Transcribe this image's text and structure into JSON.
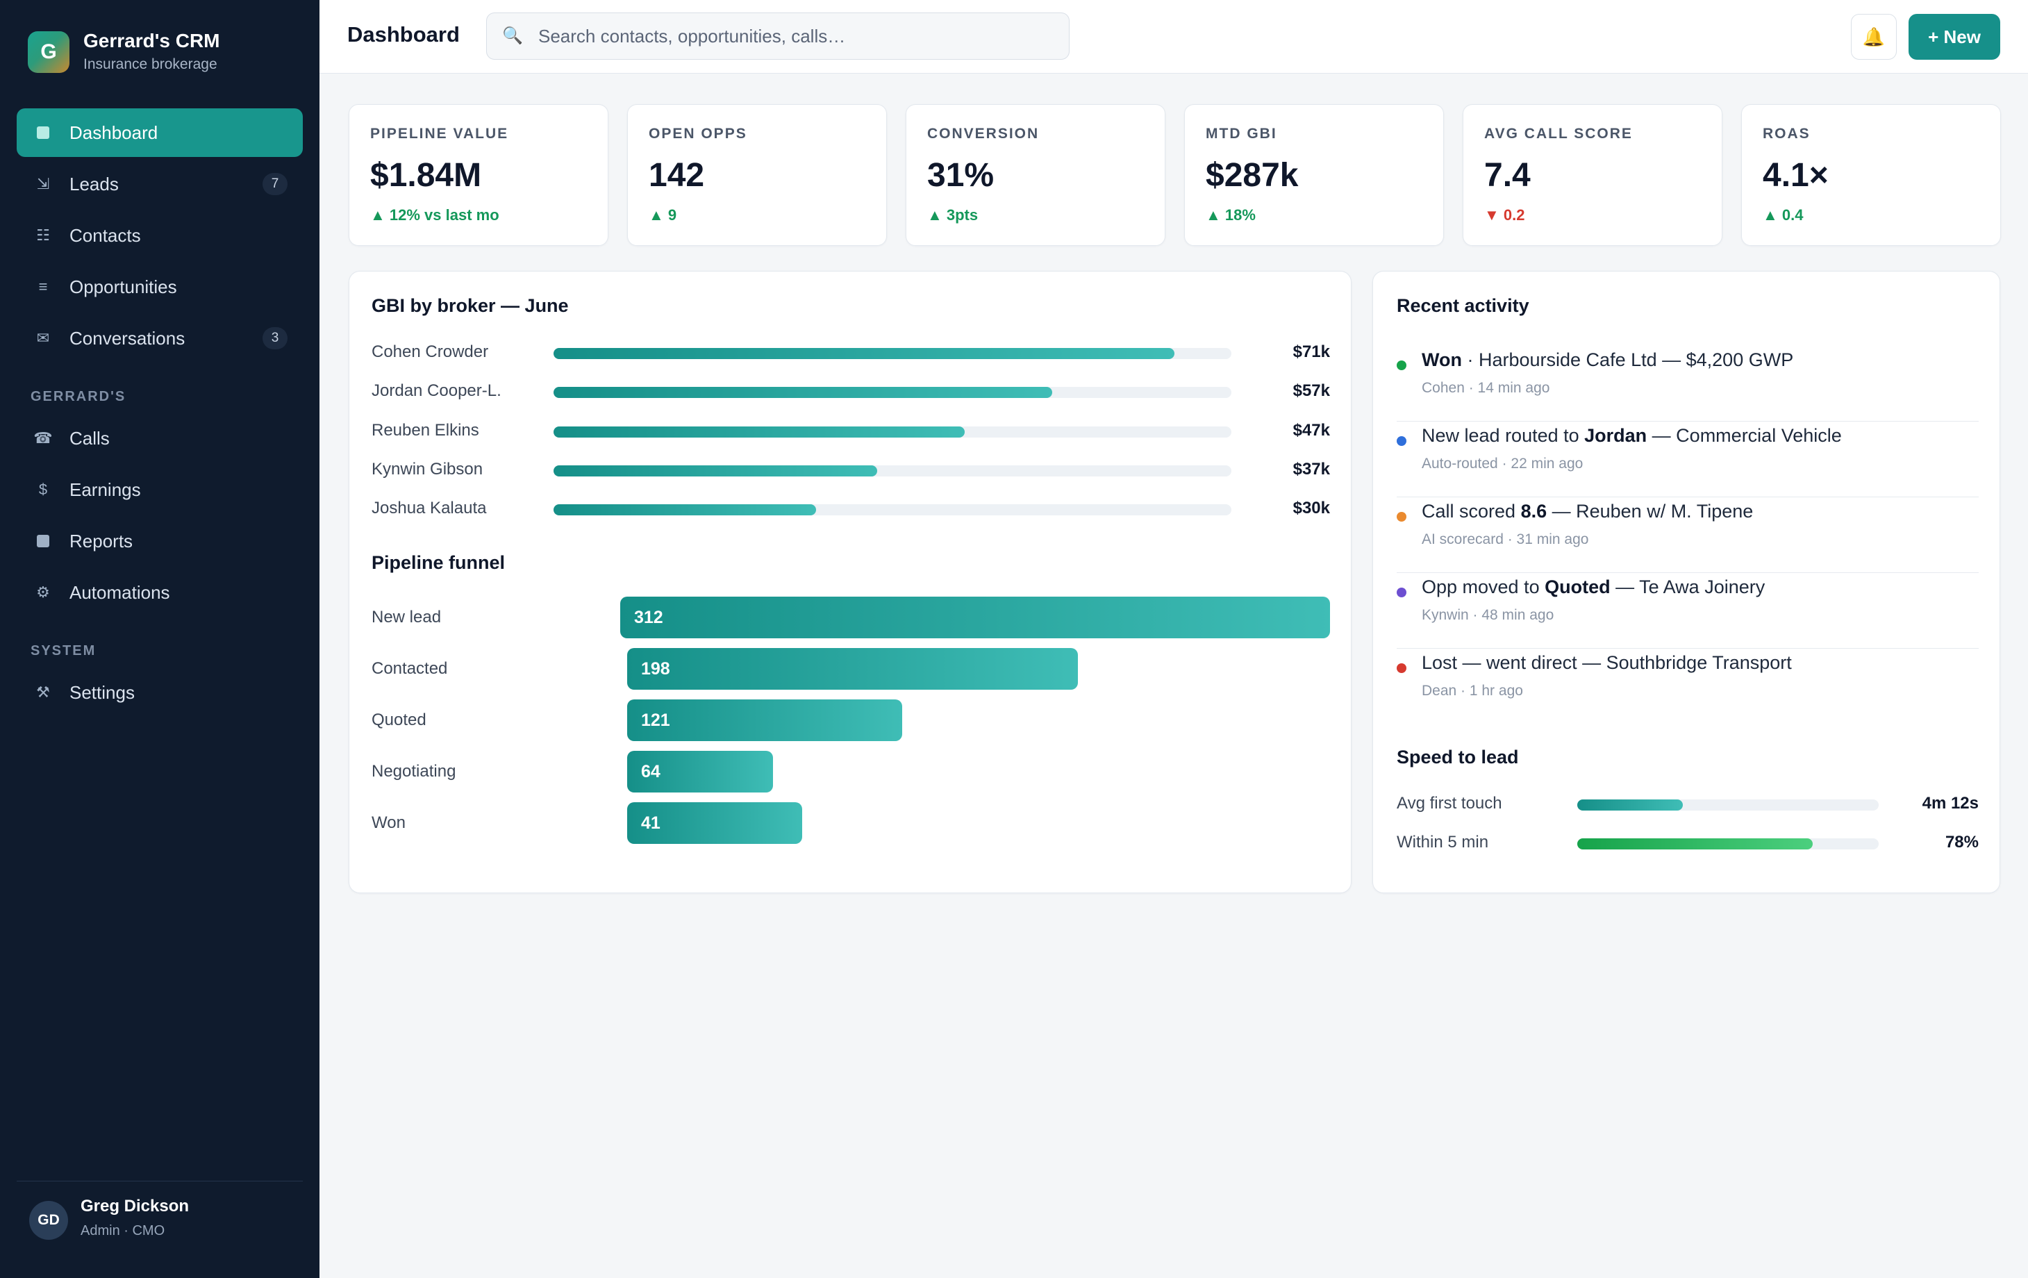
{
  "brand": {
    "logo_letter": "G",
    "title": "Gerrard's CRM",
    "subtitle": "Insurance brokerage"
  },
  "nav": {
    "main": [
      {
        "label": "Dashboard",
        "icon": "square-icon",
        "active": true
      },
      {
        "label": "Leads",
        "icon": "arrow-down-right-icon",
        "badge": "7"
      },
      {
        "label": "Contacts",
        "icon": "list-icon"
      },
      {
        "label": "Opportunities",
        "icon": "lines-icon"
      },
      {
        "label": "Conversations",
        "icon": "envelope-icon",
        "badge": "3"
      }
    ],
    "section_gerrards": "GERRARD'S",
    "gerrards": [
      {
        "label": "Calls",
        "icon": "phone-icon"
      },
      {
        "label": "Earnings",
        "icon": "dollar-icon"
      },
      {
        "label": "Reports",
        "icon": "square-icon"
      },
      {
        "label": "Automations",
        "icon": "gear-icon"
      }
    ],
    "section_system": "SYSTEM",
    "system": [
      {
        "label": "Settings",
        "icon": "tools-icon"
      }
    ]
  },
  "user": {
    "initials": "GD",
    "name": "Greg Dickson",
    "role": "Admin · CMO"
  },
  "header": {
    "title": "Dashboard",
    "search_placeholder": "Search contacts, opportunities, calls…",
    "search_icon": "🔍",
    "bell_icon": "🔔",
    "new_label": "+ New"
  },
  "kpis": [
    {
      "label": "PIPELINE VALUE",
      "value": "$1.84M",
      "delta": "▲ 12% vs last mo",
      "trend": "up"
    },
    {
      "label": "OPEN OPPS",
      "value": "142",
      "delta": "▲ 9",
      "trend": "up"
    },
    {
      "label": "CONVERSION",
      "value": "31%",
      "delta": "▲ 3pts",
      "trend": "up"
    },
    {
      "label": "MTD GBI",
      "value": "$287k",
      "delta": "▲ 18%",
      "trend": "up"
    },
    {
      "label": "AVG CALL SCORE",
      "value": "7.4",
      "delta": "▼ 0.2",
      "trend": "down"
    },
    {
      "label": "ROAS",
      "value": "4.1×",
      "delta": "▲ 0.4",
      "trend": "up"
    }
  ],
  "gbi": {
    "title": "GBI by broker — June",
    "max": 77.5,
    "brokers": [
      {
        "name": "Cohen Crowder",
        "value": 71,
        "label": "$71k"
      },
      {
        "name": "Jordan Cooper-L.",
        "value": 57,
        "label": "$57k"
      },
      {
        "name": "Reuben Elkins",
        "value": 47,
        "label": "$47k"
      },
      {
        "name": "Kynwin Gibson",
        "value": 37,
        "label": "$37k"
      },
      {
        "name": "Joshua Kalauta",
        "value": 30,
        "label": "$30k"
      }
    ]
  },
  "funnel": {
    "title": "Pipeline funnel",
    "stages": [
      {
        "label": "New lead",
        "value": 312
      },
      {
        "label": "Contacted",
        "value": 198
      },
      {
        "label": "Quoted",
        "value": 121
      },
      {
        "label": "Negotiating",
        "value": 64
      },
      {
        "label": "Won",
        "value": 41
      }
    ]
  },
  "activity": {
    "title": "Recent activity",
    "items": [
      {
        "color": "#16a34a",
        "pre": "",
        "bold": "Won",
        "post": " · Harbourside Cafe Ltd — $4,200 GWP",
        "sub": "Cohen · 14 min ago"
      },
      {
        "color": "#2f6fdb",
        "pre": "New lead routed to ",
        "bold": "Jordan",
        "post": " — Commercial Vehicle",
        "sub": "Auto-routed · 22 min ago"
      },
      {
        "color": "#ea8a2f",
        "pre": "Call scored ",
        "bold": "8.6",
        "post": " — Reuben w/ M. Tipene",
        "sub": "AI scorecard · 31 min ago"
      },
      {
        "color": "#6d4fd1",
        "pre": "Opp moved to ",
        "bold": "Quoted",
        "post": " — Te Awa Joinery",
        "sub": "Kynwin · 48 min ago"
      },
      {
        "color": "#d63a2f",
        "pre": "Lost — went direct — Southbridge Transport",
        "bold": "",
        "post": "",
        "sub": "Dean · 1 hr ago"
      }
    ]
  },
  "speed": {
    "title": "Speed to lead",
    "rows": [
      {
        "label": "Avg first touch",
        "value": "4m 12s",
        "fraction": 0.35,
        "color_from": "#158f88",
        "color_to": "#3fbdb6"
      },
      {
        "label": "Within 5 min",
        "value": "78%",
        "fraction": 0.78,
        "color_from": "#16a34a",
        "color_to": "#4ccf7e"
      }
    ]
  }
}
